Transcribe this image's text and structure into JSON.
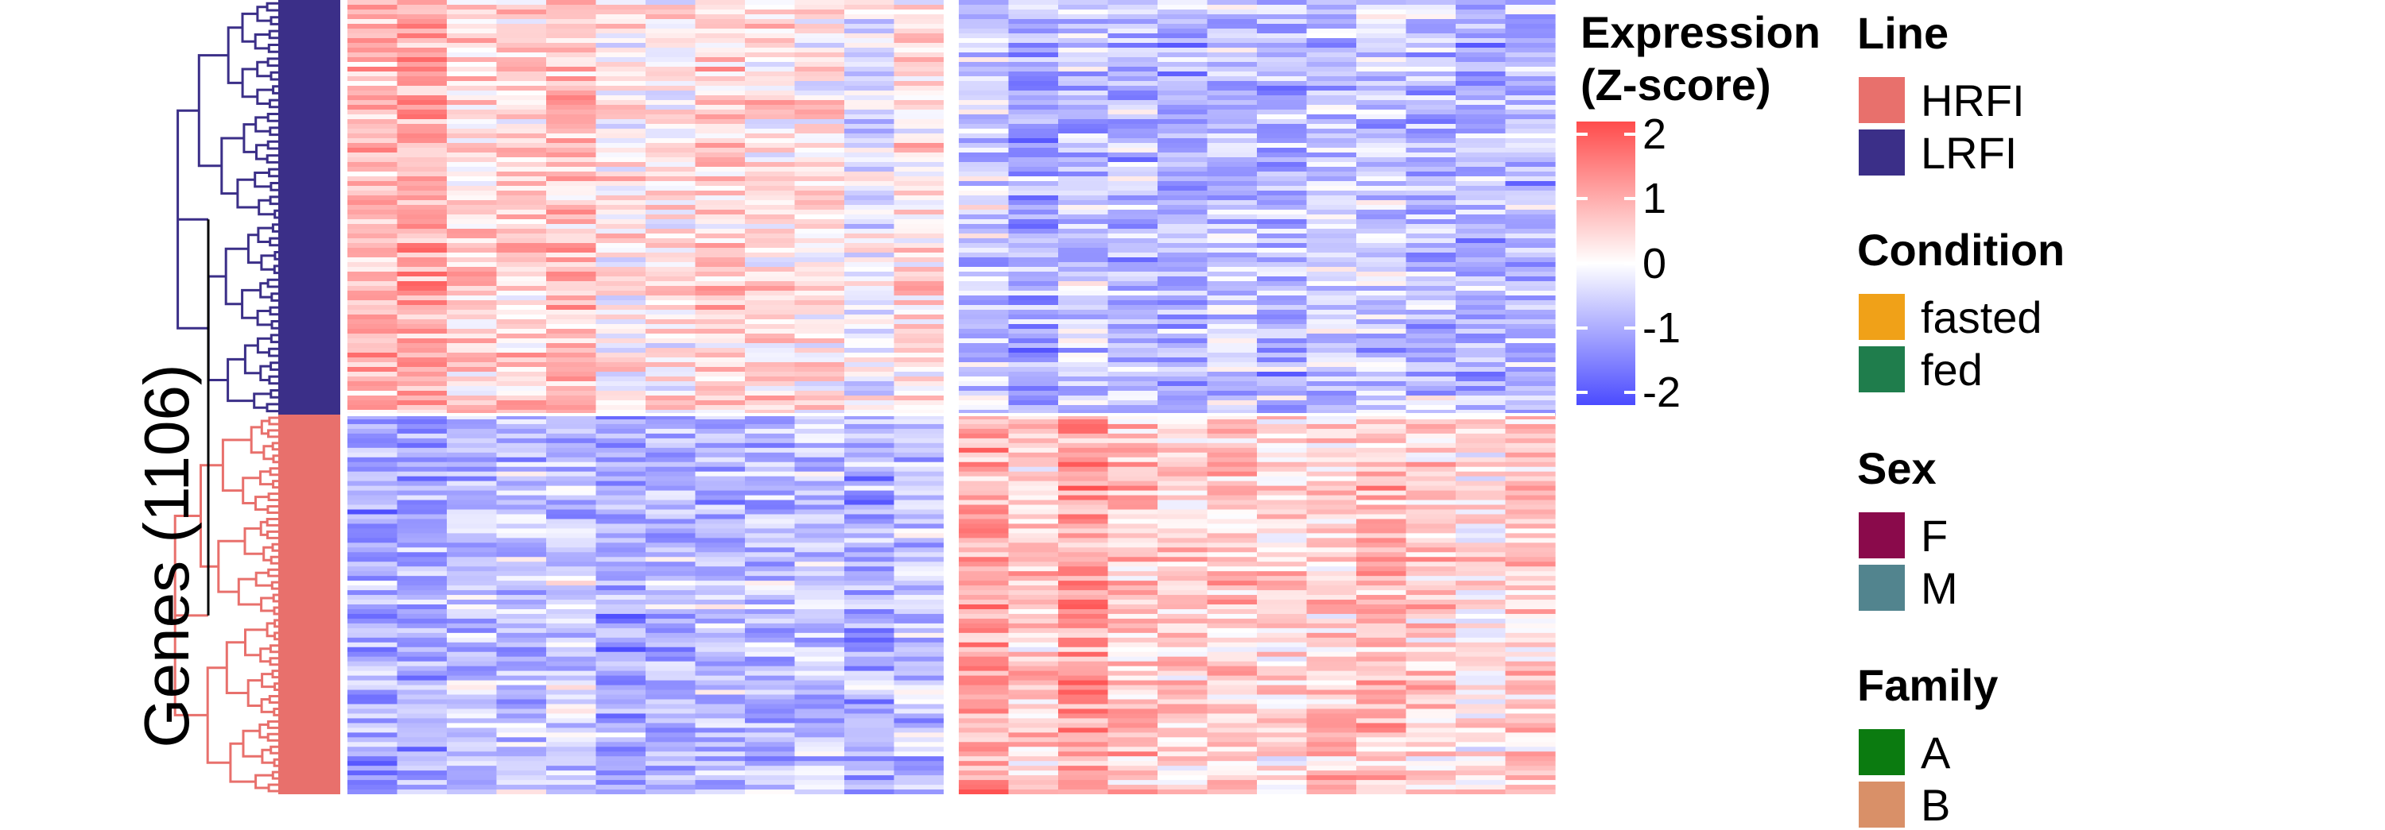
{
  "chart_data": {
    "type": "heatmap",
    "ylabel": "Genes (1106)",
    "color_scale": {
      "title_line1": "Expression",
      "title_line2": "(Z-score)",
      "ticks": [
        "2",
        "1",
        "0",
        "-1",
        "-2"
      ],
      "range": [
        -2,
        2
      ],
      "colors": {
        "high": "#ff4b4b",
        "mid": "#ffffff",
        "low": "#4b4bff"
      }
    },
    "row_clusters": [
      {
        "cluster": 1,
        "color": "#3b2f88",
        "pattern_left_block": "high",
        "pattern_right_block": "low"
      },
      {
        "cluster": 2,
        "color": "#e8706c",
        "pattern_left_block": "low",
        "pattern_right_block": "high"
      }
    ],
    "column_blocks": [
      {
        "block": "left",
        "columns": 12
      },
      {
        "block": "right",
        "columns": 12
      }
    ],
    "legends": [
      {
        "title": "Line",
        "items": [
          {
            "label": "HRFI",
            "color": "#e8706c"
          },
          {
            "label": "LRFI",
            "color": "#3b2f88"
          }
        ]
      },
      {
        "title": "Condition",
        "items": [
          {
            "label": "fasted",
            "color": "#f0a118"
          },
          {
            "label": "fed",
            "color": "#1f7d4c"
          }
        ]
      },
      {
        "title": "Sex",
        "items": [
          {
            "label": "F",
            "color": "#8a0a4b"
          },
          {
            "label": "M",
            "color": "#52848e"
          }
        ]
      },
      {
        "title": "Family",
        "items": [
          {
            "label": "A",
            "color": "#0b7b10"
          },
          {
            "label": "B",
            "color": "#d99068"
          }
        ]
      }
    ]
  }
}
